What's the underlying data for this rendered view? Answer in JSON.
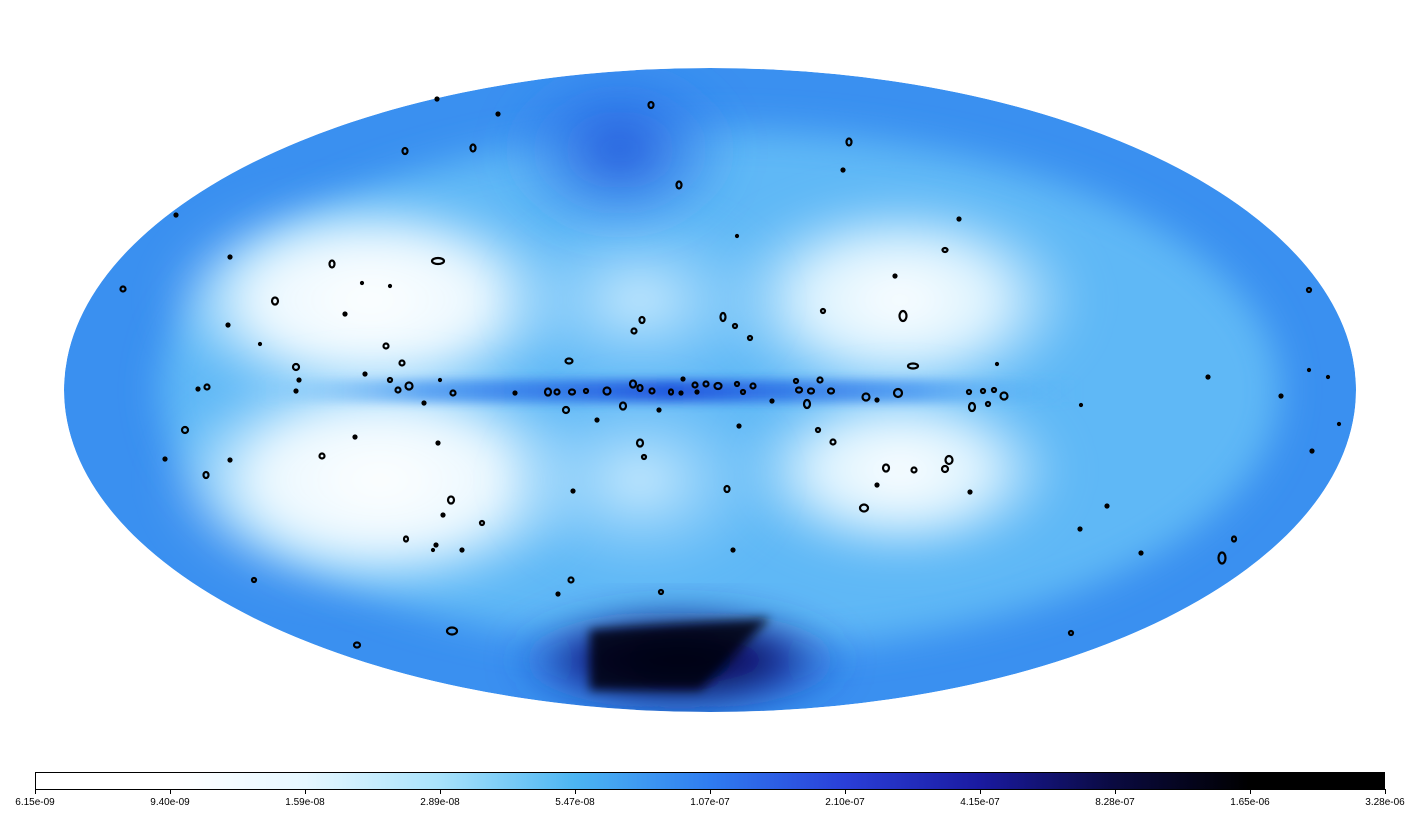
{
  "colorbar": {
    "tick_labels": [
      "6.15e-09",
      "9.40e-09",
      "1.59e-08",
      "2.89e-08",
      "5.47e-08",
      "1.07e-07",
      "2.10e-07",
      "4.15e-07",
      "8.28e-07",
      "1.65e-06",
      "3.28e-06"
    ],
    "gradient_colors": [
      "#ffffff",
      "#ffffff",
      "#e6f7ff",
      "#a8e2fb",
      "#4cb5f2",
      "#2f7cf0",
      "#2a3fd8",
      "#1a1aa0",
      "#0a0a40",
      "#000000",
      "#000000"
    ]
  },
  "map": {
    "projection": "mollweide",
    "background_color": "#3a8ff0",
    "source_marker_color": "#000000"
  }
}
